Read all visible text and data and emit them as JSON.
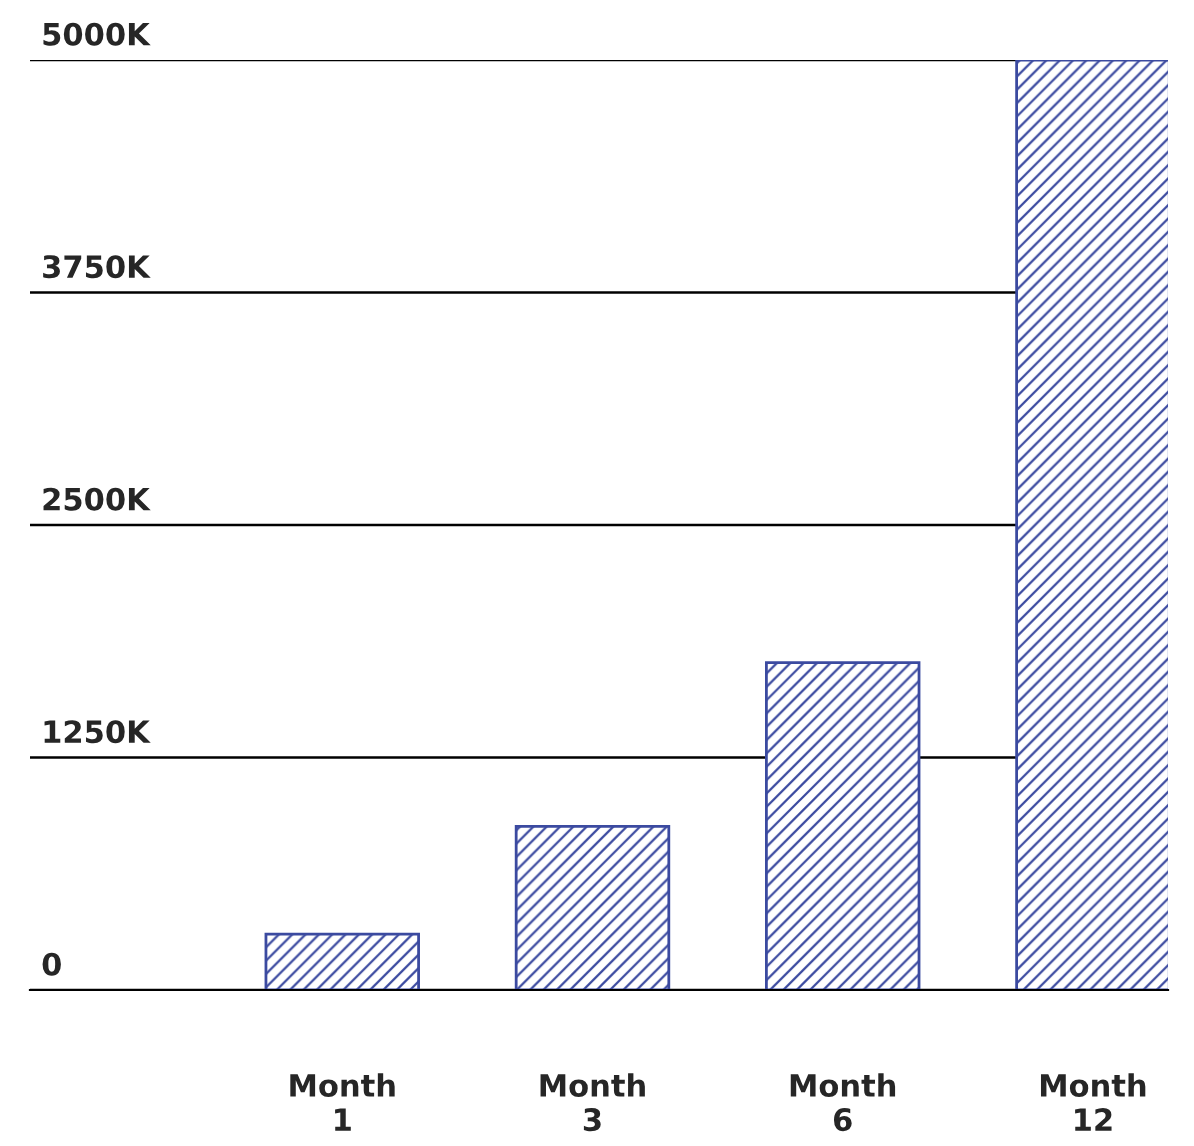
{
  "chart_data": {
    "type": "bar",
    "categories": [
      "Month\n1",
      "Month\n3",
      "Month\n6",
      "Month\n12"
    ],
    "values": [
      300,
      880,
      1760,
      5000
    ],
    "color": "#3b4aa0",
    "ylim": [
      0,
      5000
    ],
    "yticks": [
      {
        "value": 0,
        "label": "0"
      },
      {
        "value": 1250,
        "label": "1250K"
      },
      {
        "value": 2500,
        "label": "2500K"
      },
      {
        "value": 3750,
        "label": "3750K"
      },
      {
        "value": 5000,
        "label": "5000K"
      }
    ],
    "grid": "y"
  }
}
